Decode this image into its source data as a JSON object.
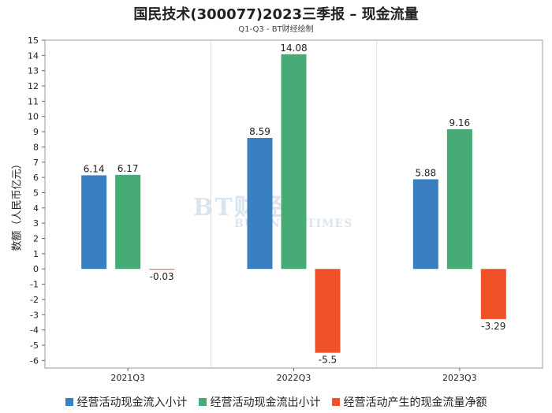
{
  "title": "国民技术(300077)2023三季报 – 现金流量",
  "subtitle": "Q1-Q3 - BT财经绘制",
  "watermark": {
    "line1": "BT财经",
    "line2": "BUSINESSTIMES"
  },
  "legend": [
    {
      "label": "经营活动现金流入小计",
      "color": "#3a80c0"
    },
    {
      "label": "经营活动现金流出小计",
      "color": "#46ab74"
    },
    {
      "label": "经营活动产生的现金流量净额",
      "color": "#f05228"
    }
  ],
  "chart_data": {
    "type": "bar",
    "categories": [
      "2021Q3",
      "2022Q3",
      "2023Q3"
    ],
    "series": [
      {
        "name": "经营活动现金流入小计",
        "values": [
          6.14,
          8.59,
          5.88
        ],
        "color": "#3a80c0"
      },
      {
        "name": "经营活动现金流出小计",
        "values": [
          6.17,
          14.08,
          9.16
        ],
        "color": "#46ab74"
      },
      {
        "name": "经营活动产生的现金流量净额",
        "values": [
          -0.03,
          -5.5,
          -3.29
        ],
        "color": "#f05228"
      }
    ],
    "data_labels": [
      [
        "6.14",
        "8.59",
        "5.88"
      ],
      [
        "6.17",
        "14.08",
        "9.16"
      ],
      [
        "-0.03",
        "-5.5",
        "-3.29"
      ]
    ],
    "ylabel": "数额（人民币亿元）",
    "ylim": [
      -6.5,
      15
    ],
    "yticks": [
      -6,
      -5,
      -4,
      -3,
      -2,
      -1,
      0,
      1,
      2,
      3,
      4,
      5,
      6,
      7,
      8,
      9,
      10,
      11,
      12,
      13,
      14,
      15
    ],
    "grid": "vertical",
    "legend_position": "bottom"
  }
}
